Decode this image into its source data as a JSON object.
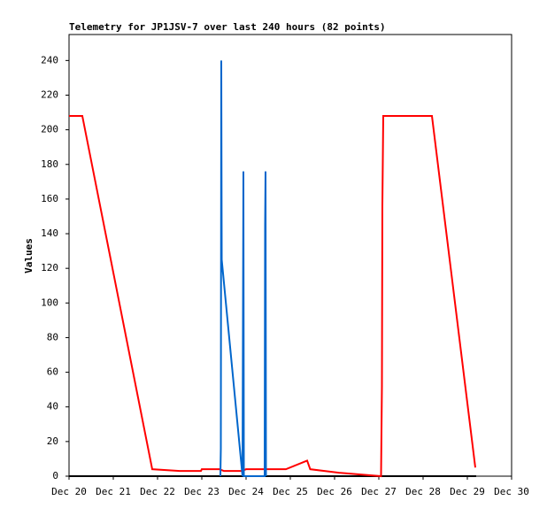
{
  "chart_data": {
    "type": "line",
    "title": "Telemetry for JP1JSV-7 over last 240 hours (82 points)",
    "y_label": "Values",
    "xlim": [
      0,
      10
    ],
    "xticks": [
      {
        "value": 0,
        "label": "Dec 20"
      },
      {
        "value": 1,
        "label": "Dec 21"
      },
      {
        "value": 2,
        "label": "Dec 22"
      },
      {
        "value": 3,
        "label": "Dec 23"
      },
      {
        "value": 4,
        "label": "Dec 24"
      },
      {
        "value": 5,
        "label": "Dec 25"
      },
      {
        "value": 6,
        "label": "Dec 26"
      },
      {
        "value": 7,
        "label": "Dec 27"
      },
      {
        "value": 8,
        "label": "Dec 28"
      },
      {
        "value": 9,
        "label": "Dec 29"
      },
      {
        "value": 10,
        "label": "Dec 30"
      }
    ],
    "ylim": [
      0,
      255
    ],
    "yticks": [
      0,
      20,
      40,
      60,
      80,
      100,
      120,
      140,
      160,
      180,
      200,
      220,
      240
    ],
    "grid": false,
    "series": [
      {
        "color": "#000000",
        "x": [
          0,
          9.2
        ],
        "values": [
          0,
          0
        ]
      },
      {
        "color": "#ff0000",
        "x": [
          0,
          0.3,
          1.88,
          2.5,
          2.98,
          3.0,
          3.4,
          3.5,
          3.9,
          4.0,
          4.9,
          5.38,
          5.45,
          6.1,
          7.05,
          7.07,
          7.08,
          7.1,
          8.2,
          9.18
        ],
        "values": [
          208,
          208,
          4,
          3,
          3,
          4,
          4,
          3,
          3,
          4,
          4,
          9,
          4,
          2,
          0,
          52,
          156,
          208,
          208,
          5
        ]
      },
      {
        "color": "#0066cc",
        "x": [
          3.42,
          3.43,
          3.44,
          3.45,
          3.92,
          3.94,
          3.95,
          4.42,
          4.43,
          4.44,
          4.45
        ],
        "values": [
          0,
          16,
          240,
          125,
          0,
          176,
          0,
          0,
          145,
          176,
          0
        ]
      }
    ]
  }
}
